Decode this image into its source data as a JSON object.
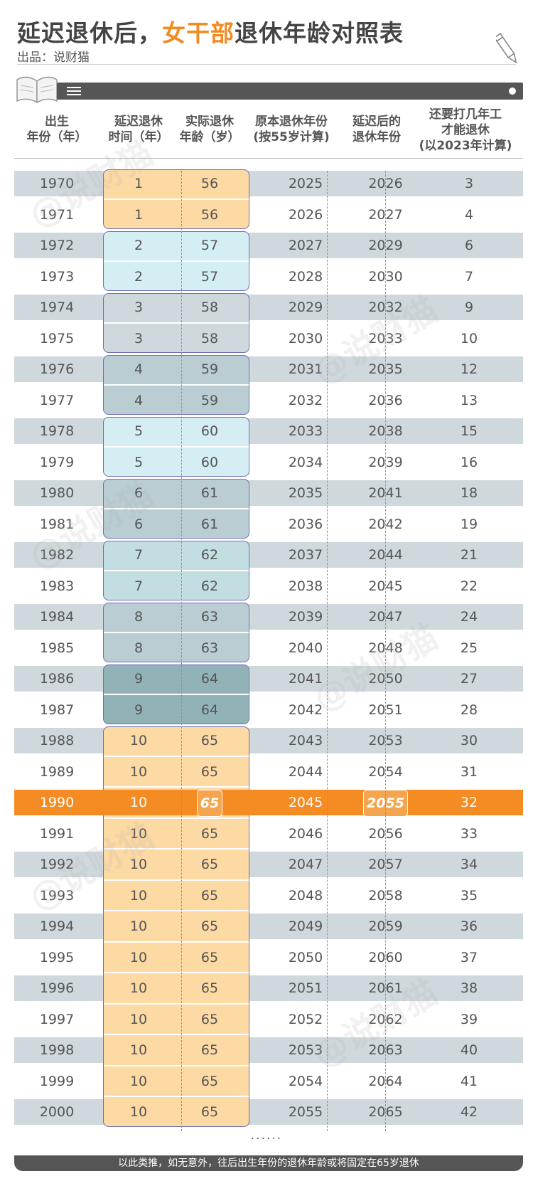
{
  "title": {
    "part1": "延迟退休后，",
    "highlight": "女干部",
    "part2": "退休年龄对照表"
  },
  "source": "出品：说财猫",
  "watermark": "@说财猫",
  "headers": [
    [
      "出生",
      "年份（年）"
    ],
    [
      "延迟退休",
      "时间（年）"
    ],
    [
      "实际退休",
      "年龄（岁）"
    ],
    [
      "原本退休年份",
      "(按55岁计算)"
    ],
    [
      "延迟后的",
      "退休年份"
    ],
    [
      "还要打几年工",
      "才能退休",
      "(以2023年计算)"
    ]
  ],
  "rows": [
    [
      "1970",
      "1",
      "56",
      "2025",
      "2026",
      "3"
    ],
    [
      "1971",
      "1",
      "56",
      "2026",
      "2027",
      "4"
    ],
    [
      "1972",
      "2",
      "57",
      "2027",
      "2029",
      "6"
    ],
    [
      "1973",
      "2",
      "57",
      "2028",
      "2030",
      "7"
    ],
    [
      "1974",
      "3",
      "58",
      "2029",
      "2032",
      "9"
    ],
    [
      "1975",
      "3",
      "58",
      "2030",
      "2033",
      "10"
    ],
    [
      "1976",
      "4",
      "59",
      "2031",
      "2035",
      "12"
    ],
    [
      "1977",
      "4",
      "59",
      "2032",
      "2036",
      "13"
    ],
    [
      "1978",
      "5",
      "60",
      "2033",
      "2038",
      "15"
    ],
    [
      "1979",
      "5",
      "60",
      "2034",
      "2039",
      "16"
    ],
    [
      "1980",
      "6",
      "61",
      "2035",
      "2041",
      "18"
    ],
    [
      "1981",
      "6",
      "61",
      "2036",
      "2042",
      "19"
    ],
    [
      "1982",
      "7",
      "62",
      "2037",
      "2044",
      "21"
    ],
    [
      "1983",
      "7",
      "62",
      "2038",
      "2045",
      "22"
    ],
    [
      "1984",
      "8",
      "63",
      "2039",
      "2047",
      "24"
    ],
    [
      "1985",
      "8",
      "63",
      "2040",
      "2048",
      "25"
    ],
    [
      "1986",
      "9",
      "64",
      "2041",
      "2050",
      "27"
    ],
    [
      "1987",
      "9",
      "64",
      "2042",
      "2051",
      "28"
    ],
    [
      "1988",
      "10",
      "65",
      "2043",
      "2053",
      "30"
    ],
    [
      "1989",
      "10",
      "65",
      "2044",
      "2054",
      "31"
    ],
    [
      "1990",
      "10",
      "65",
      "2045",
      "2055",
      "32"
    ],
    [
      "1991",
      "10",
      "65",
      "2046",
      "2056",
      "33"
    ],
    [
      "1992",
      "10",
      "65",
      "2047",
      "2057",
      "34"
    ],
    [
      "1993",
      "10",
      "65",
      "2048",
      "2058",
      "35"
    ],
    [
      "1994",
      "10",
      "65",
      "2049",
      "2059",
      "36"
    ],
    [
      "1995",
      "10",
      "65",
      "2050",
      "2060",
      "37"
    ],
    [
      "1996",
      "10",
      "65",
      "2051",
      "2061",
      "38"
    ],
    [
      "1997",
      "10",
      "65",
      "2052",
      "2062",
      "39"
    ],
    [
      "1998",
      "10",
      "65",
      "2053",
      "2063",
      "40"
    ],
    [
      "1999",
      "10",
      "65",
      "2054",
      "2064",
      "41"
    ],
    [
      "2000",
      "10",
      "65",
      "2055",
      "2065",
      "42"
    ]
  ],
  "highlight_row": 20,
  "groups": [
    {
      "start": 0,
      "end": 1,
      "color": "#fdd9a3"
    },
    {
      "start": 2,
      "end": 3,
      "color": "#d4eef4"
    },
    {
      "start": 4,
      "end": 5,
      "color": "#cfd8dc"
    },
    {
      "start": 6,
      "end": 7,
      "color": "#b9cdd3"
    },
    {
      "start": 8,
      "end": 9,
      "color": "#d4eef4"
    },
    {
      "start": 10,
      "end": 11,
      "color": "#b9cdd3"
    },
    {
      "start": 12,
      "end": 13,
      "color": "#c2dee2"
    },
    {
      "start": 14,
      "end": 15,
      "color": "#b9cdd3"
    },
    {
      "start": 16,
      "end": 17,
      "color": "#91b3b8"
    },
    {
      "start": 18,
      "end": 30,
      "color": "#fdd9a3"
    }
  ],
  "ellipsis": "......",
  "footer": "以此类推，如无意外，往后出生年份的退休年龄或将固定在65岁退休"
}
